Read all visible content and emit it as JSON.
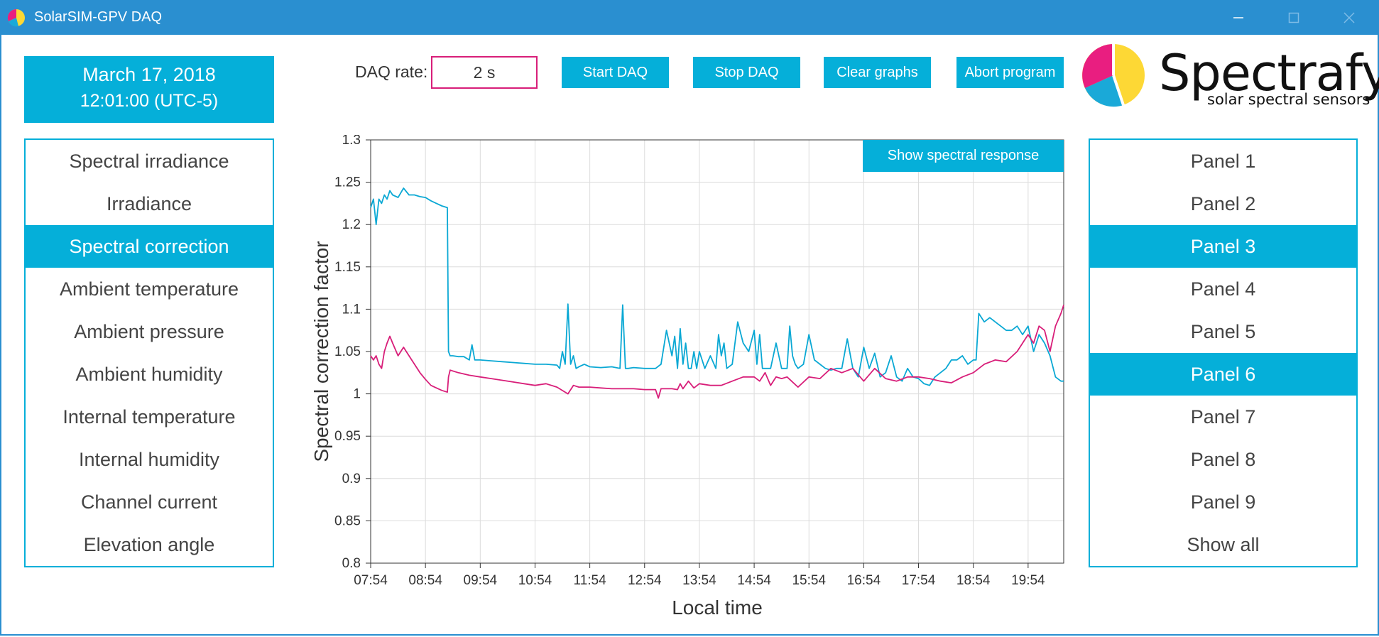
{
  "window": {
    "title": "SolarSIM-GPV DAQ",
    "controls": [
      "minimize-icon",
      "maximize-icon",
      "close-icon"
    ]
  },
  "datetime": {
    "date": "March 17, 2018",
    "time": "12:01:00 (UTC-5)"
  },
  "toolbar": {
    "daq_rate_label": "DAQ rate:",
    "daq_rate_value": "2 s",
    "start_label": "Start DAQ",
    "stop_label": "Stop DAQ",
    "clear_label": "Clear graphs",
    "abort_label": "Abort program"
  },
  "logo": {
    "name": "Spectrafy",
    "tagline": "solar spectral sensors"
  },
  "measurements": {
    "items": [
      "Spectral irradiance",
      "Irradiance",
      "Spectral correction",
      "Ambient temperature",
      "Ambient pressure",
      "Ambient humidity",
      "Internal temperature",
      "Internal humidity",
      "Channel current",
      "Elevation angle"
    ],
    "selected": "Spectral correction"
  },
  "panels": {
    "items": [
      "Panel 1",
      "Panel 2",
      "Panel 3",
      "Panel 4",
      "Panel 5",
      "Panel 6",
      "Panel 7",
      "Panel 8",
      "Panel 9",
      "Show all"
    ],
    "selected": [
      "Panel 3",
      "Panel 6"
    ]
  },
  "chart_button": "Show spectral response",
  "colors": {
    "accent": "#05afd9",
    "titlebar": "#2a8fd0",
    "magenta": "#d81e79"
  },
  "chart_data": {
    "type": "line",
    "xlabel": "Local time",
    "ylabel": "Spectral correction factor",
    "xlim": [
      0,
      12.65
    ],
    "ylim": [
      0.8,
      1.3
    ],
    "xticks": [
      "07:54",
      "08:54",
      "09:54",
      "10:54",
      "11:54",
      "12:54",
      "13:54",
      "14:54",
      "15:54",
      "16:54",
      "17:54",
      "18:54",
      "19:54"
    ],
    "yticks": [
      "0.8",
      "0.85",
      "0.9",
      "0.95",
      "1",
      "1.05",
      "1.1",
      "1.15",
      "1.2",
      "1.25",
      "1.3"
    ],
    "grid": true,
    "series": [
      {
        "color": "#0aa8d4",
        "x": [
          0,
          0.05,
          0.1,
          0.15,
          0.2,
          0.25,
          0.3,
          0.35,
          0.4,
          0.5,
          0.6,
          0.7,
          0.8,
          0.9,
          1.0,
          1.1,
          1.2,
          1.3,
          1.4,
          1.42,
          1.45,
          1.5,
          1.6,
          1.7,
          1.8,
          1.85,
          1.9,
          1.95,
          2.0,
          2.2,
          2.4,
          2.6,
          2.8,
          3.0,
          3.2,
          3.4,
          3.45,
          3.5,
          3.55,
          3.6,
          3.65,
          3.7,
          3.75,
          3.8,
          3.9,
          4.0,
          4.2,
          4.4,
          4.55,
          4.6,
          4.65,
          4.7,
          4.8,
          5.0,
          5.2,
          5.3,
          5.4,
          5.5,
          5.55,
          5.6,
          5.65,
          5.7,
          5.75,
          5.8,
          5.85,
          5.9,
          5.95,
          6.0,
          6.1,
          6.2,
          6.3,
          6.35,
          6.4,
          6.45,
          6.5,
          6.6,
          6.7,
          6.8,
          6.9,
          7.0,
          7.05,
          7.1,
          7.15,
          7.2,
          7.3,
          7.4,
          7.5,
          7.6,
          7.65,
          7.7,
          7.75,
          7.8,
          7.9,
          8.0,
          8.1,
          8.2,
          8.3,
          8.4,
          8.5,
          8.6,
          8.7,
          8.8,
          8.9,
          9.0,
          9.1,
          9.2,
          9.3,
          9.4,
          9.5,
          9.6,
          9.7,
          9.8,
          9.9,
          10.0,
          10.1,
          10.2,
          10.3,
          10.4,
          10.5,
          10.6,
          10.7,
          10.8,
          10.9,
          11.0,
          11.05,
          11.1,
          11.2,
          11.3,
          11.4,
          11.5,
          11.6,
          11.7,
          11.8,
          11.9,
          12.0,
          12.1,
          12.2,
          12.3,
          12.4,
          12.5,
          12.6,
          12.65
        ],
        "y": [
          1.22,
          1.23,
          1.2,
          1.23,
          1.225,
          1.235,
          1.23,
          1.24,
          1.235,
          1.232,
          1.243,
          1.235,
          1.235,
          1.233,
          1.232,
          1.228,
          1.225,
          1.222,
          1.22,
          1.05,
          1.045,
          1.045,
          1.044,
          1.044,
          1.04,
          1.058,
          1.04,
          1.04,
          1.04,
          1.039,
          1.038,
          1.037,
          1.036,
          1.035,
          1.035,
          1.034,
          1.03,
          1.05,
          1.035,
          1.106,
          1.035,
          1.045,
          1.03,
          1.032,
          1.035,
          1.032,
          1.031,
          1.032,
          1.03,
          1.105,
          1.03,
          1.03,
          1.031,
          1.03,
          1.03,
          1.035,
          1.075,
          1.045,
          1.068,
          1.03,
          1.077,
          1.035,
          1.06,
          1.03,
          1.03,
          1.05,
          1.03,
          1.05,
          1.03,
          1.045,
          1.03,
          1.07,
          1.045,
          1.06,
          1.03,
          1.035,
          1.085,
          1.06,
          1.05,
          1.075,
          1.035,
          1.07,
          1.03,
          1.03,
          1.03,
          1.06,
          1.03,
          1.03,
          1.08,
          1.045,
          1.035,
          1.03,
          1.035,
          1.07,
          1.04,
          1.035,
          1.03,
          1.028,
          1.03,
          1.03,
          1.065,
          1.03,
          1.02,
          1.055,
          1.03,
          1.048,
          1.02,
          1.025,
          1.045,
          1.02,
          1.015,
          1.03,
          1.02,
          1.018,
          1.012,
          1.01,
          1.02,
          1.025,
          1.03,
          1.04,
          1.04,
          1.045,
          1.035,
          1.04,
          1.04,
          1.095,
          1.085,
          1.09,
          1.085,
          1.08,
          1.075,
          1.075,
          1.08,
          1.07,
          1.08,
          1.05,
          1.07,
          1.06,
          1.045,
          1.02,
          1.015,
          1.015
        ]
      },
      {
        "color": "#d81e79",
        "x": [
          0,
          0.05,
          0.1,
          0.15,
          0.2,
          0.25,
          0.3,
          0.35,
          0.4,
          0.5,
          0.6,
          0.7,
          0.8,
          0.9,
          1.0,
          1.1,
          1.2,
          1.3,
          1.4,
          1.42,
          1.45,
          1.6,
          1.8,
          2.0,
          2.2,
          2.4,
          2.6,
          2.8,
          3.0,
          3.2,
          3.4,
          3.6,
          3.7,
          3.8,
          4.0,
          4.2,
          4.4,
          4.6,
          4.8,
          5.0,
          5.2,
          5.25,
          5.3,
          5.5,
          5.6,
          5.65,
          5.7,
          5.8,
          5.9,
          6.0,
          6.2,
          6.4,
          6.6,
          6.8,
          7.0,
          7.1,
          7.2,
          7.3,
          7.4,
          7.5,
          7.6,
          7.8,
          8.0,
          8.2,
          8.4,
          8.6,
          8.8,
          9.0,
          9.2,
          9.4,
          9.6,
          9.8,
          10.0,
          10.2,
          10.4,
          10.6,
          10.8,
          11.0,
          11.2,
          11.4,
          11.6,
          11.8,
          12.0,
          12.1,
          12.2,
          12.3,
          12.4,
          12.5,
          12.6,
          12.65
        ],
        "y": [
          1.045,
          1.04,
          1.045,
          1.035,
          1.03,
          1.05,
          1.06,
          1.068,
          1.06,
          1.045,
          1.055,
          1.045,
          1.035,
          1.025,
          1.017,
          1.01,
          1.007,
          1.004,
          1.002,
          1.02,
          1.028,
          1.025,
          1.022,
          1.02,
          1.018,
          1.016,
          1.014,
          1.012,
          1.01,
          1.012,
          1.008,
          1.0,
          1.01,
          1.008,
          1.008,
          1.007,
          1.006,
          1.006,
          1.006,
          1.005,
          1.005,
          0.995,
          1.006,
          1.006,
          1.005,
          1.012,
          1.006,
          1.015,
          1.007,
          1.012,
          1.01,
          1.01,
          1.015,
          1.02,
          1.02,
          1.015,
          1.025,
          1.01,
          1.02,
          1.018,
          1.02,
          1.008,
          1.02,
          1.018,
          1.03,
          1.025,
          1.03,
          1.015,
          1.03,
          1.018,
          1.015,
          1.02,
          1.02,
          1.018,
          1.015,
          1.013,
          1.02,
          1.025,
          1.035,
          1.04,
          1.038,
          1.05,
          1.07,
          1.06,
          1.08,
          1.075,
          1.05,
          1.08,
          1.095,
          1.105
        ]
      }
    ]
  }
}
